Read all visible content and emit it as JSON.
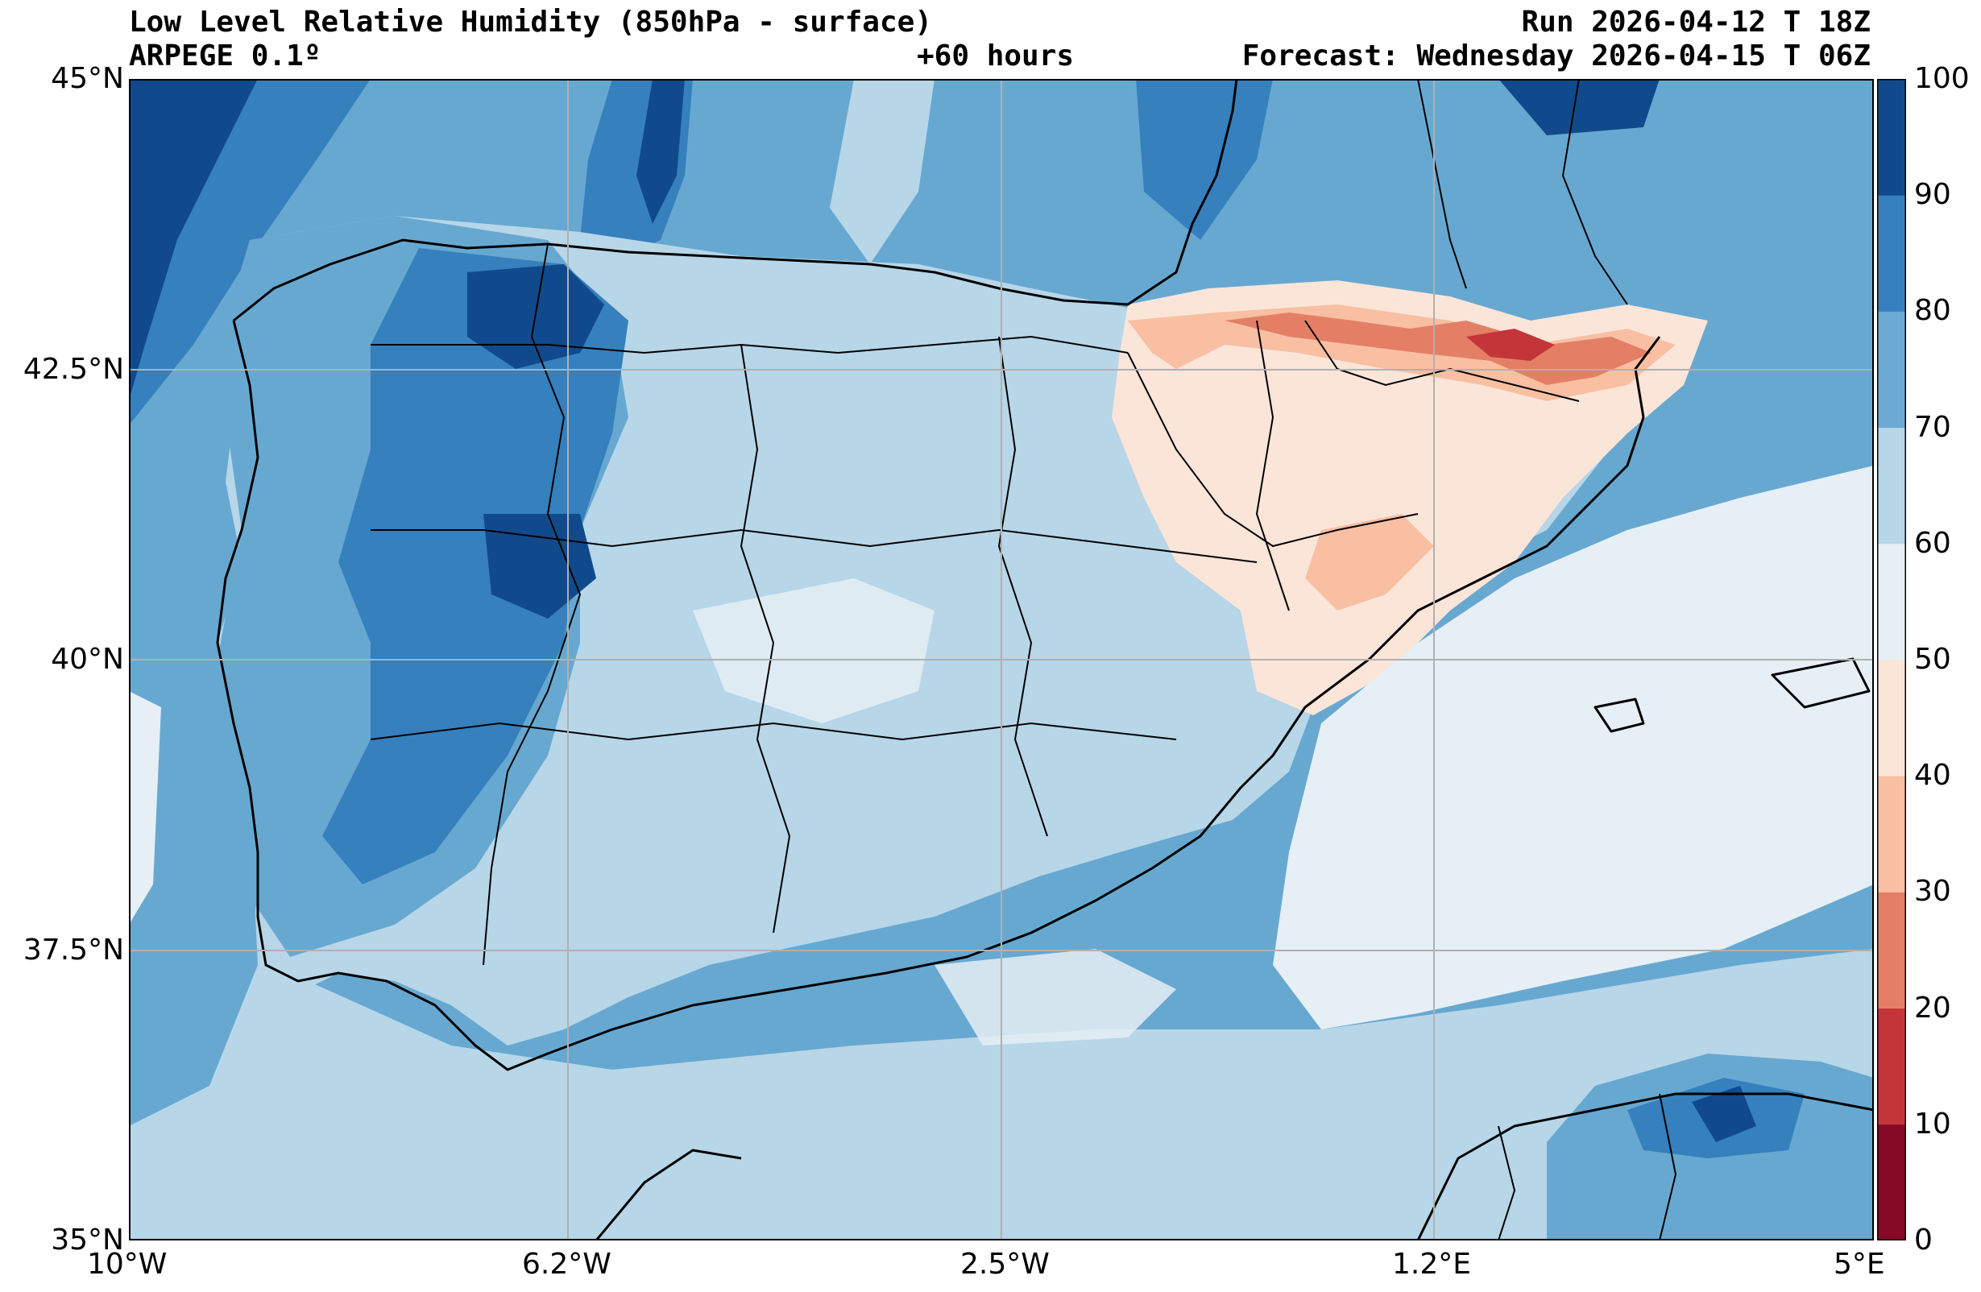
{
  "title": {
    "left_line1": "Low Level Relative Humidity (850hPa - surface)",
    "left_line2": "ARPEGE 0.1º",
    "center_line2": "+60 hours",
    "right_line1": "Run 2026-04-12 T 18Z",
    "right_line2": "Forecast: Wednesday 2026-04-15 T 06Z"
  },
  "axes": {
    "lat_labels": [
      "45°N",
      "42.5°N",
      "40°N",
      "37.5°N",
      "35°N"
    ],
    "lon_labels": [
      "10°W",
      "6.2°W",
      "2.5°W",
      "1.2°E",
      "5°E"
    ]
  },
  "colorbar": {
    "ticks": [
      "0",
      "10",
      "20",
      "30",
      "40",
      "50",
      "60",
      "70",
      "80",
      "90",
      "100"
    ],
    "colors": [
      "#850a26",
      "#c33538",
      "#e47f65",
      "#f8bfa3",
      "#fbe5d8",
      "#e6eff5",
      "#b7d6e8",
      "#6aaad3",
      "#3580bd",
      "#104a8c"
    ]
  },
  "map_colors": {
    "ocean": "#67a8d1",
    "border": "#000000",
    "grid": "#b0b0b0"
  }
}
